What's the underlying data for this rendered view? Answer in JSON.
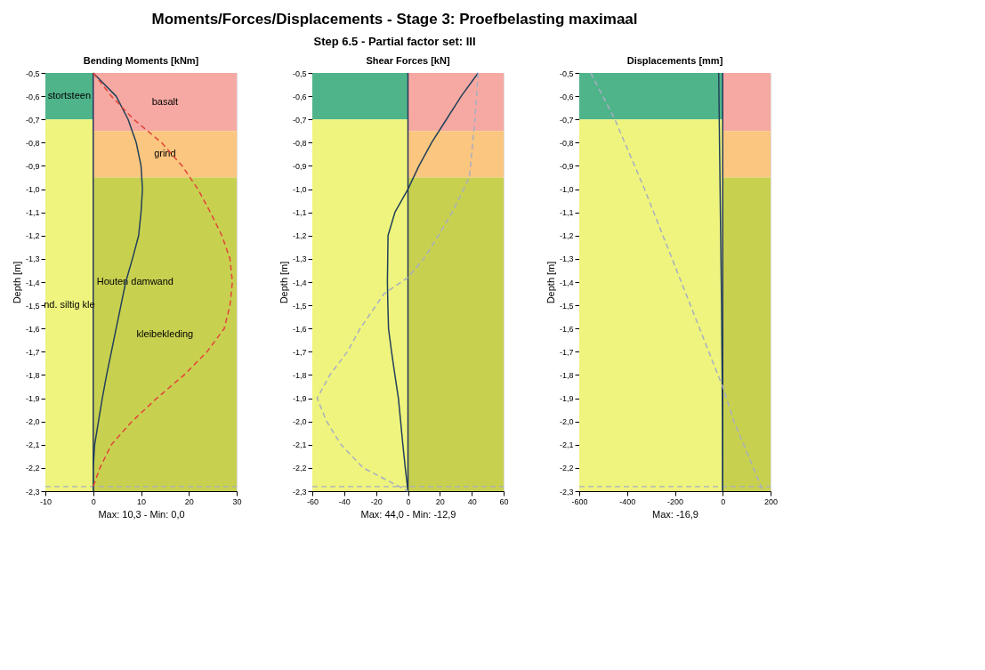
{
  "chart_data": [
    {
      "type": "line",
      "title": "Bending Moments [kNm]",
      "ylabel": "Depth [m]",
      "annotations": [
        "Moments/Forces/Displacements - Stage 3: Proefbelasting maximaal",
        "Step 6.5 - Partial factor set: III",
        "Max: 10,3 - Min: 0,0"
      ],
      "xlim": [
        -10,
        30
      ],
      "xticks": [
        -10,
        0,
        10,
        20,
        30
      ],
      "ylim": [
        -2.3,
        -0.5
      ],
      "yticks": [
        {
          "value": -0.5,
          "label": "-0,5"
        },
        {
          "value": -0.6,
          "label": "-0,6"
        },
        {
          "value": -0.7,
          "label": "-0,7"
        },
        {
          "value": -0.8,
          "label": "-0,8"
        },
        {
          "value": -0.9,
          "label": "-0,9"
        },
        {
          "value": -1.0,
          "label": "-1,0"
        },
        {
          "value": -1.1,
          "label": "-1,1"
        },
        {
          "value": -1.2,
          "label": "-1,2"
        },
        {
          "value": -1.3,
          "label": "-1,3"
        },
        {
          "value": -1.4,
          "label": "-1,4"
        },
        {
          "value": -1.5,
          "label": "-1,5"
        },
        {
          "value": -1.6,
          "label": "-1,6"
        },
        {
          "value": -1.7,
          "label": "-1,7"
        },
        {
          "value": -1.8,
          "label": "-1,8"
        },
        {
          "value": -1.9,
          "label": "-1,9"
        },
        {
          "value": -2.0,
          "label": "-2,0"
        },
        {
          "value": -2.1,
          "label": "-2,1"
        },
        {
          "value": -2.2,
          "label": "-2,2"
        },
        {
          "value": -2.3,
          "label": "-2,3"
        }
      ],
      "grid": false,
      "bands": [
        {
          "axis": "y",
          "from": -0.5,
          "to": -0.7,
          "label": "stortsteen",
          "color": "#4fb48a"
        },
        {
          "axis": "y",
          "from": -0.7,
          "to": -2.3,
          "label": "nd. siltig kle",
          "color": "#eef47e"
        },
        {
          "axis": "y",
          "from": -0.5,
          "to": -0.75,
          "label": "basalt",
          "color": "#f6a9a2"
        },
        {
          "axis": "y",
          "from": -0.75,
          "to": -0.95,
          "label": "grind",
          "color": "#fbc67f"
        },
        {
          "axis": "y",
          "from": -0.95,
          "to": -2.3,
          "label": "kleibekleding",
          "color": "#c8d050"
        }
      ],
      "ref_lines": [
        {
          "axis": "x",
          "value": 0,
          "label": "Houten damwand",
          "color": "#27375e",
          "line_style": "solid"
        },
        {
          "axis": "y",
          "value": -2.28,
          "color": "#a8aec0",
          "line_style": "dashed"
        }
      ],
      "series": [
        {
          "color": "#22405a",
          "line_style": "solid",
          "x": [
            0,
            4.8,
            7.3,
            9.0,
            10.0,
            10.3,
            10.0,
            9.5,
            8.2,
            6.8,
            5.8,
            4.8,
            3.8,
            2.8,
            1.9,
            1.1,
            0.3,
            0,
            0
          ],
          "values": [
            -0.5,
            -0.6,
            -0.7,
            -0.8,
            -0.9,
            -1.0,
            -1.1,
            -1.2,
            -1.3,
            -1.4,
            -1.5,
            -1.6,
            -1.7,
            -1.8,
            -1.9,
            -2.0,
            -2.1,
            -2.2,
            -2.3
          ]
        },
        {
          "color": "#e2433a",
          "line_style": "dashed",
          "x": [
            0,
            3.8,
            8.5,
            14.3,
            18.6,
            21.9,
            24.5,
            26.9,
            28.6,
            29.1,
            28.6,
            27.4,
            23.8,
            19.0,
            13.3,
            8.1,
            3.8,
            1.4,
            0
          ],
          "values": [
            -0.5,
            -0.6,
            -0.7,
            -0.8,
            -0.9,
            -1.0,
            -1.1,
            -1.2,
            -1.3,
            -1.4,
            -1.5,
            -1.6,
            -1.7,
            -1.8,
            -1.9,
            -2.0,
            -2.1,
            -2.2,
            -2.28
          ]
        }
      ]
    },
    {
      "type": "line",
      "title": "Shear Forces [kN]",
      "ylabel": "Depth [m]",
      "annotations": [
        "Max: 44,0 - Min: -12,9"
      ],
      "xlim": [
        -60,
        60
      ],
      "xticks": [
        -60,
        -40,
        -20,
        0,
        20,
        40,
        60
      ],
      "ylim": [
        -2.3,
        -0.5
      ],
      "yticks": [
        {
          "value": -0.5,
          "label": "-0,5"
        },
        {
          "value": -0.6,
          "label": "-0,6"
        },
        {
          "value": -0.7,
          "label": "-0,7"
        },
        {
          "value": -0.8,
          "label": "-0,8"
        },
        {
          "value": -0.9,
          "label": "-0,9"
        },
        {
          "value": -1.0,
          "label": "-1,0"
        },
        {
          "value": -1.1,
          "label": "-1,1"
        },
        {
          "value": -1.2,
          "label": "-1,2"
        },
        {
          "value": -1.3,
          "label": "-1,3"
        },
        {
          "value": -1.4,
          "label": "-1,4"
        },
        {
          "value": -1.5,
          "label": "-1,5"
        },
        {
          "value": -1.6,
          "label": "-1,6"
        },
        {
          "value": -1.7,
          "label": "-1,7"
        },
        {
          "value": -1.8,
          "label": "-1,8"
        },
        {
          "value": -1.9,
          "label": "-1,9"
        },
        {
          "value": -2.0,
          "label": "-2,0"
        },
        {
          "value": -2.1,
          "label": "-2,1"
        },
        {
          "value": -2.2,
          "label": "-2,2"
        },
        {
          "value": -2.3,
          "label": "-2,3"
        }
      ],
      "grid": false,
      "bands": [
        {
          "axis": "y",
          "from": -0.5,
          "to": -0.7,
          "color": "#4fb48a"
        },
        {
          "axis": "y",
          "from": -0.7,
          "to": -2.3,
          "color": "#eef47e"
        },
        {
          "axis": "y",
          "from": -0.5,
          "to": -0.75,
          "color": "#f6a9a2"
        },
        {
          "axis": "y",
          "from": -0.75,
          "to": -0.95,
          "color": "#fbc67f"
        },
        {
          "axis": "y",
          "from": -0.95,
          "to": -2.3,
          "color": "#c8d050"
        }
      ],
      "ref_lines": [
        {
          "axis": "x",
          "value": 0,
          "color": "#27375e",
          "line_style": "solid"
        },
        {
          "axis": "y",
          "value": -2.28,
          "color": "#a8aec0",
          "line_style": "dashed"
        }
      ],
      "series": [
        {
          "color": "#22405a",
          "line_style": "solid",
          "x": [
            44,
            33.4,
            24.1,
            14.8,
            6.9,
            0,
            -8.2,
            -12.5,
            -12.7,
            -12.9,
            -12.6,
            -12.2,
            -10.3,
            -8.2,
            -6.0,
            -4.6,
            -3.2,
            -1.7,
            0
          ],
          "values": [
            -0.5,
            -0.6,
            -0.7,
            -0.8,
            -0.9,
            -1.0,
            -1.1,
            -1.2,
            -1.3,
            -1.4,
            -1.5,
            -1.6,
            -1.7,
            -1.8,
            -1.9,
            -2.0,
            -2.1,
            -2.2,
            -2.3
          ]
        },
        {
          "color": "#a8aec0",
          "line_style": "dashed",
          "x": [
            44,
            42,
            38.5,
            34.9,
            27.7,
            19.1,
            9.8,
            0,
            -15,
            -20,
            -30,
            -38,
            -49,
            -57,
            -51,
            -42,
            -28,
            0
          ],
          "values": [
            -0.5,
            -0.7,
            -0.95,
            -1.0,
            -1.1,
            -1.2,
            -1.3,
            -1.38,
            -1.45,
            -1.5,
            -1.6,
            -1.7,
            -1.8,
            -1.9,
            -2.0,
            -2.1,
            -2.2,
            -2.3
          ]
        }
      ]
    },
    {
      "type": "line",
      "title": "Displacements [mm]",
      "ylabel": "Depth [m]",
      "annotations": [
        "Max: -16,9"
      ],
      "xlim": [
        -600,
        200
      ],
      "xticks": [
        -600,
        -400,
        -200,
        0,
        200
      ],
      "ylim": [
        -2.3,
        -0.5
      ],
      "yticks": [
        {
          "value": -0.5,
          "label": "-0,5"
        },
        {
          "value": -0.6,
          "label": "-0,6"
        },
        {
          "value": -0.7,
          "label": "-0,7"
        },
        {
          "value": -0.8,
          "label": "-0,8"
        },
        {
          "value": -0.9,
          "label": "-0,9"
        },
        {
          "value": -1.0,
          "label": "-1,0"
        },
        {
          "value": -1.1,
          "label": "-1,1"
        },
        {
          "value": -1.2,
          "label": "-1,2"
        },
        {
          "value": -1.3,
          "label": "-1,3"
        },
        {
          "value": -1.4,
          "label": "-1,4"
        },
        {
          "value": -1.5,
          "label": "-1,5"
        },
        {
          "value": -1.6,
          "label": "-1,6"
        },
        {
          "value": -1.7,
          "label": "-1,7"
        },
        {
          "value": -1.8,
          "label": "-1,8"
        },
        {
          "value": -1.9,
          "label": "-1,9"
        },
        {
          "value": -2.0,
          "label": "-2,0"
        },
        {
          "value": -2.1,
          "label": "-2,1"
        },
        {
          "value": -2.2,
          "label": "-2,2"
        },
        {
          "value": -2.3,
          "label": "-2,3"
        }
      ],
      "grid": false,
      "bands": [
        {
          "axis": "y",
          "from": -0.5,
          "to": -0.7,
          "color": "#4fb48a"
        },
        {
          "axis": "y",
          "from": -0.7,
          "to": -2.3,
          "color": "#eef47e"
        },
        {
          "axis": "y",
          "from": -0.5,
          "to": -0.75,
          "color": "#f6a9a2"
        },
        {
          "axis": "y",
          "from": -0.75,
          "to": -0.95,
          "color": "#fbc67f"
        },
        {
          "axis": "y",
          "from": -0.95,
          "to": -2.3,
          "color": "#c8d050"
        }
      ],
      "ref_lines": [
        {
          "axis": "x",
          "value": 0,
          "color": "#27375e",
          "line_style": "solid"
        },
        {
          "axis": "y",
          "value": -2.28,
          "color": "#a8aec0",
          "line_style": "dashed"
        }
      ],
      "series": [
        {
          "color": "#22405a",
          "line_style": "solid",
          "x": [
            -16.9,
            -11,
            -5,
            -1,
            0
          ],
          "values": [
            -0.5,
            -1.0,
            -1.5,
            -2.0,
            -2.3
          ]
        },
        {
          "color": "#a8aec0",
          "line_style": "dashed",
          "x": [
            -552,
            -451,
            -327,
            -135,
            -20,
            0,
            47,
            128,
            168
          ],
          "values": [
            -0.5,
            -0.7,
            -1.0,
            -1.5,
            -1.8,
            -1.85,
            -2.0,
            -2.2,
            -2.3
          ]
        }
      ]
    }
  ]
}
